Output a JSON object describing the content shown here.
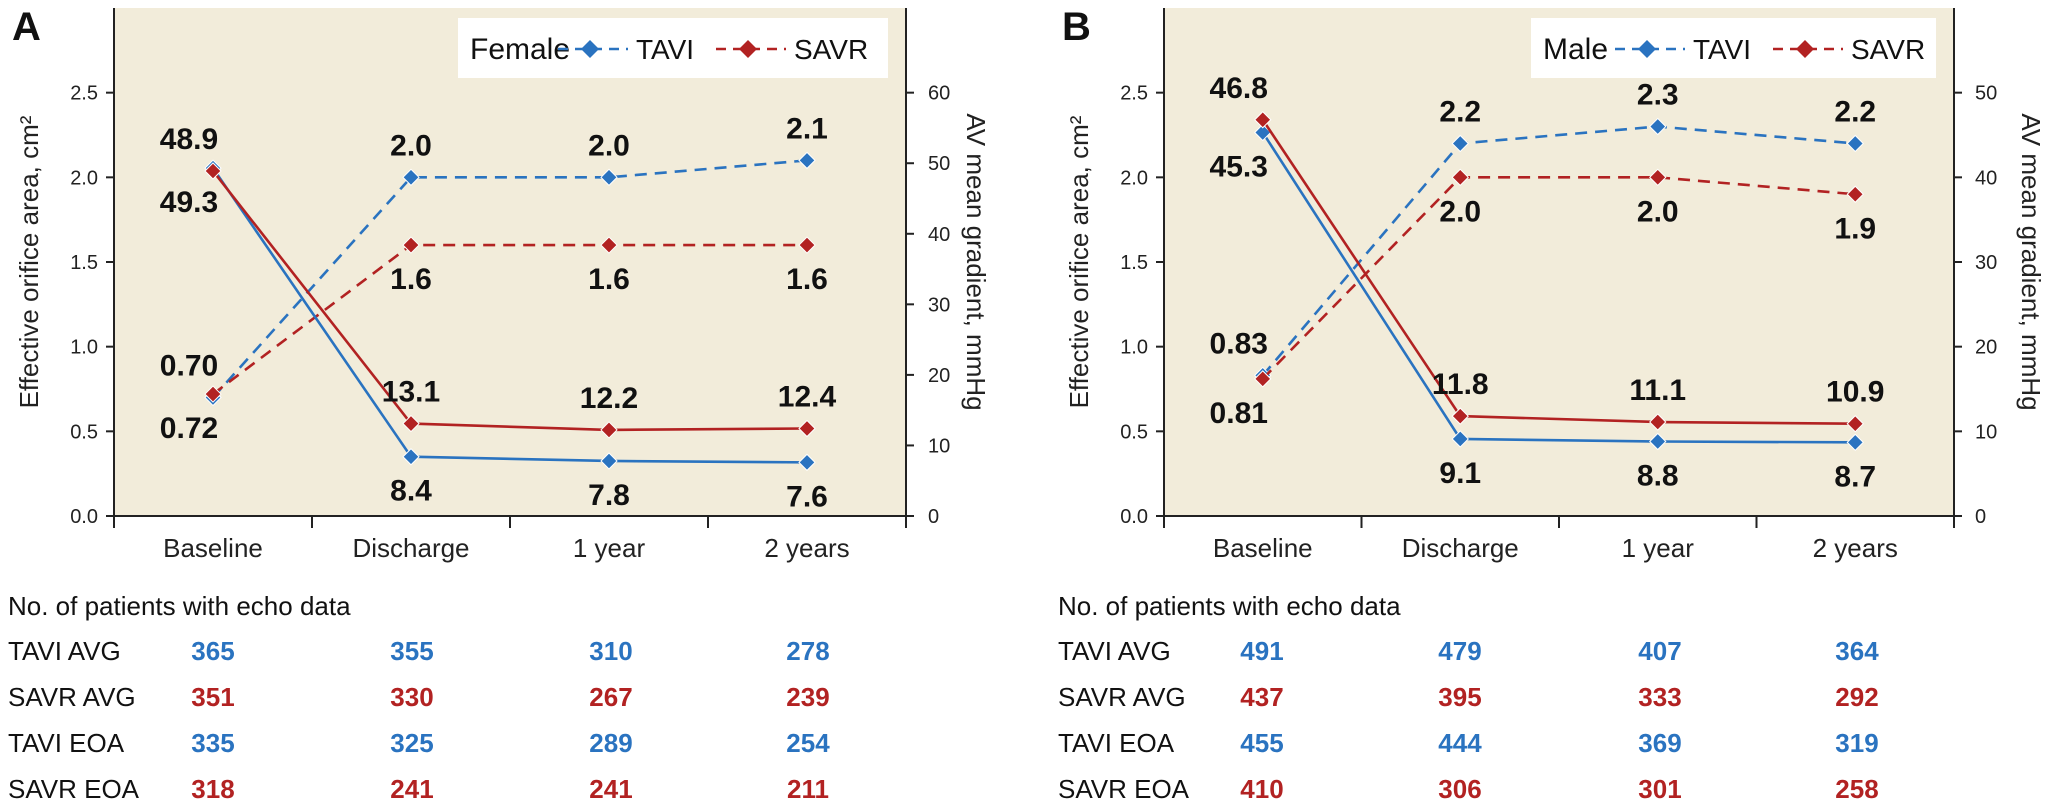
{
  "colors": {
    "tavi": "#2a73c0",
    "savr": "#b22222",
    "plot_bg": "#f2ecda",
    "axis": "#222222"
  },
  "chart_data": [
    {
      "panel": "A",
      "type": "line",
      "legend_title": "Female",
      "legend_position": "top-right",
      "categories": [
        "Baseline",
        "Discharge",
        "1 year",
        "2 years"
      ],
      "ylabel_left": "Effective orifice area, cm²",
      "ylabel_right": "AV mean gradient, mmHg",
      "ylim_left": [
        0,
        3.0
      ],
      "ylim_right": [
        0,
        72
      ],
      "yticks_left": [
        "0.0",
        "0.5",
        "1.0",
        "1.5",
        "2.0",
        "2.5"
      ],
      "yticks_right": [
        "0",
        "10",
        "20",
        "30",
        "40",
        "50",
        "60"
      ],
      "series": [
        {
          "name": "TAVI",
          "group": "tavi",
          "metric": "eoa",
          "axis": "left",
          "dashed": true,
          "values": [
            0.7,
            2.0,
            2.0,
            2.1
          ],
          "labels": [
            "0.70",
            "2.0",
            "2.0",
            "2.1"
          ],
          "label_pos": [
            "above",
            "above",
            "above",
            "above"
          ]
        },
        {
          "name": "SAVR",
          "group": "savr",
          "metric": "eoa",
          "axis": "left",
          "dashed": true,
          "values": [
            0.72,
            1.6,
            1.6,
            1.6
          ],
          "labels": [
            "0.72",
            "1.6",
            "1.6",
            "1.6"
          ],
          "label_pos": [
            "below",
            "below",
            "below",
            "below"
          ]
        },
        {
          "name": "TAVI",
          "group": "tavi",
          "metric": "gradient",
          "axis": "right",
          "dashed": false,
          "values": [
            49.3,
            8.4,
            7.8,
            7.6
          ],
          "labels": [
            "49.3",
            "8.4",
            "7.8",
            "7.6"
          ],
          "label_pos": [
            "below",
            "below",
            "below",
            "below"
          ]
        },
        {
          "name": "SAVR",
          "group": "savr",
          "metric": "gradient",
          "axis": "right",
          "dashed": false,
          "values": [
            48.9,
            13.1,
            12.2,
            12.4
          ],
          "labels": [
            "48.9",
            "13.1",
            "12.2",
            "12.4"
          ],
          "label_pos": [
            "above",
            "above",
            "above",
            "above"
          ]
        }
      ],
      "table": {
        "title": "No. of patients with echo data",
        "rows": [
          {
            "label": "TAVI AVG",
            "group": "tavi",
            "values": [
              "365",
              "355",
              "310",
              "278"
            ]
          },
          {
            "label": "SAVR AVG",
            "group": "savr",
            "values": [
              "351",
              "330",
              "267",
              "239"
            ]
          },
          {
            "label": "TAVI EOA",
            "group": "tavi",
            "values": [
              "335",
              "325",
              "289",
              "254"
            ]
          },
          {
            "label": "SAVR EOA",
            "group": "savr",
            "values": [
              "318",
              "241",
              "241",
              "211"
            ]
          }
        ]
      }
    },
    {
      "panel": "B",
      "type": "line",
      "legend_title": "Male",
      "legend_position": "top-right",
      "categories": [
        "Baseline",
        "Discharge",
        "1 year",
        "2 years"
      ],
      "ylabel_left": "Effective orifice area, cm²",
      "ylabel_right": "AV mean gradient, mmHg",
      "ylim_left": [
        0,
        3.0
      ],
      "ylim_right": [
        0,
        60
      ],
      "yticks_left": [
        "0.0",
        "0.5",
        "1.0",
        "1.5",
        "2.0",
        "2.5"
      ],
      "yticks_right": [
        "0",
        "10",
        "20",
        "30",
        "40",
        "50"
      ],
      "series": [
        {
          "name": "TAVI",
          "group": "tavi",
          "metric": "eoa",
          "axis": "left",
          "dashed": true,
          "values": [
            0.83,
            2.2,
            2.3,
            2.2
          ],
          "labels": [
            "0.83",
            "2.2",
            "2.3",
            "2.2"
          ],
          "label_pos": [
            "above",
            "above",
            "above",
            "above"
          ]
        },
        {
          "name": "SAVR",
          "group": "savr",
          "metric": "eoa",
          "axis": "left",
          "dashed": true,
          "values": [
            0.81,
            2.0,
            2.0,
            1.9
          ],
          "labels": [
            "0.81",
            "2.0",
            "2.0",
            "1.9"
          ],
          "label_pos": [
            "below",
            "below",
            "below",
            "below"
          ]
        },
        {
          "name": "TAVI",
          "group": "tavi",
          "metric": "gradient",
          "axis": "right",
          "dashed": false,
          "values": [
            45.3,
            9.1,
            8.8,
            8.7
          ],
          "labels": [
            "45.3",
            "9.1",
            "8.8",
            "8.7"
          ],
          "label_pos": [
            "below",
            "below",
            "below",
            "below"
          ]
        },
        {
          "name": "SAVR",
          "group": "savr",
          "metric": "gradient",
          "axis": "right",
          "dashed": false,
          "values": [
            46.8,
            11.8,
            11.1,
            10.9
          ],
          "labels": [
            "46.8",
            "11.8",
            "11.1",
            "10.9"
          ],
          "label_pos": [
            "above",
            "above",
            "above",
            "above"
          ]
        }
      ],
      "table": {
        "title": "No. of patients with echo data",
        "rows": [
          {
            "label": "TAVI AVG",
            "group": "tavi",
            "values": [
              "491",
              "479",
              "407",
              "364"
            ]
          },
          {
            "label": "SAVR AVG",
            "group": "savr",
            "values": [
              "437",
              "395",
              "333",
              "292"
            ]
          },
          {
            "label": "TAVI EOA",
            "group": "tavi",
            "values": [
              "455",
              "444",
              "369",
              "319"
            ]
          },
          {
            "label": "SAVR EOA",
            "group": "savr",
            "values": [
              "410",
              "306",
              "301",
              "258"
            ]
          }
        ]
      }
    }
  ]
}
